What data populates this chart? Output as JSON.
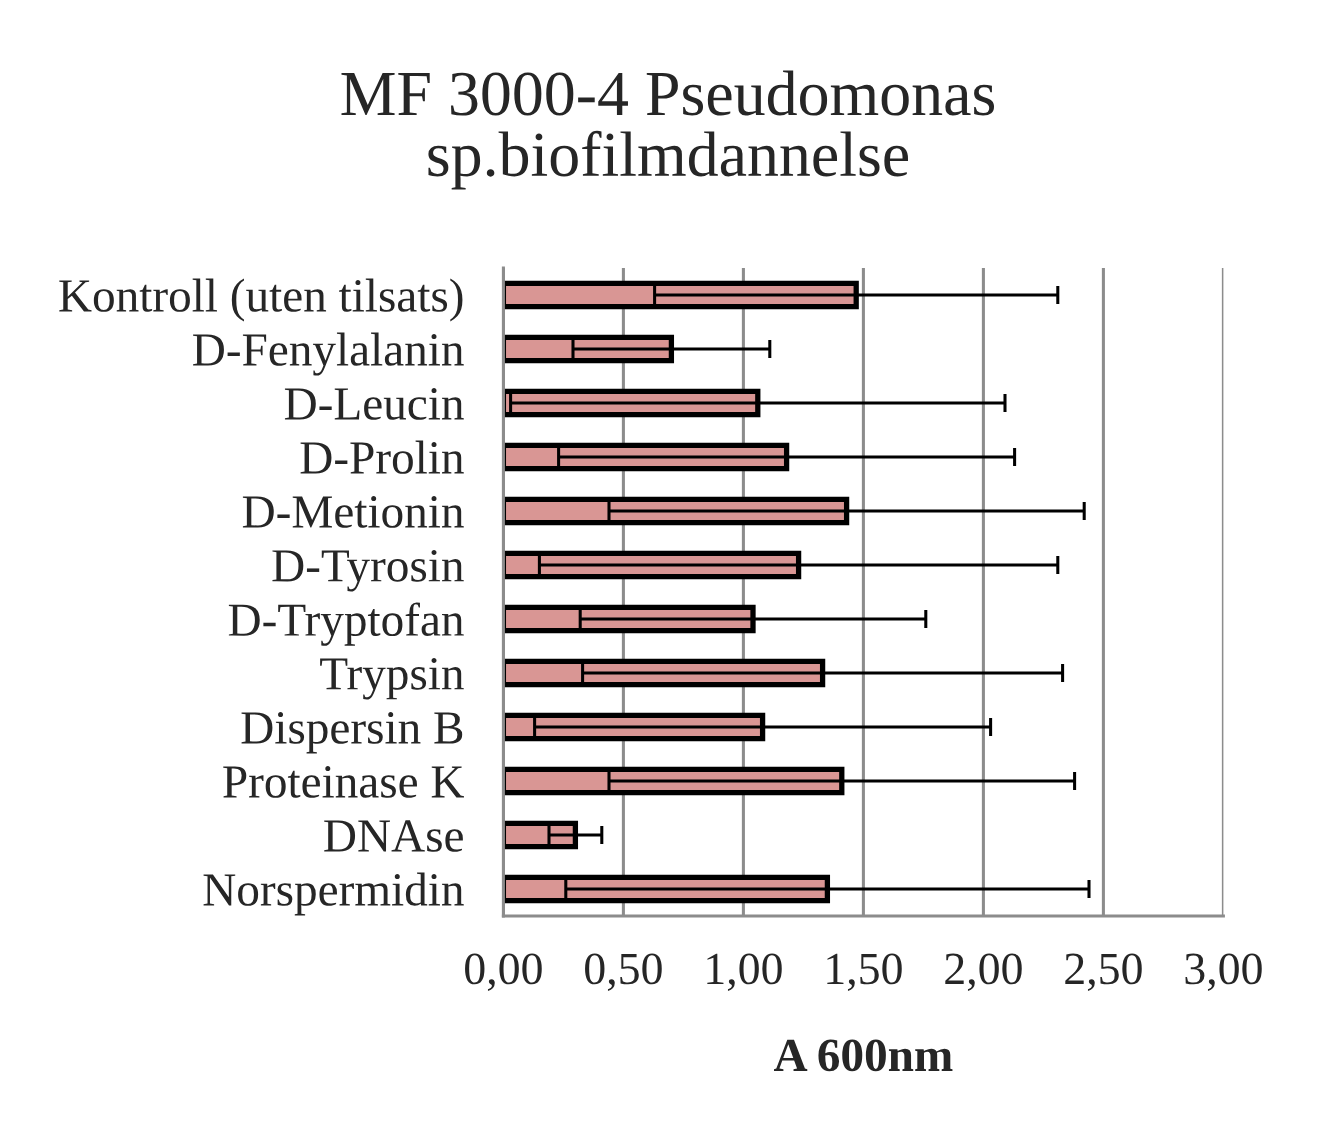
{
  "chart_data": {
    "type": "bar",
    "orientation": "horizontal",
    "title": "MF 3000-4 Pseudomonas\nsp.biofilmdannelse",
    "xlabel": "A 600nm",
    "categories": [
      "Kontroll (uten tilsats)",
      "D-Fenylalanin",
      "D-Leucin",
      "D-Prolin",
      "D-Metionin",
      "D-Tyrosin",
      "D-Tryptofan",
      "Trypsin",
      "Dispersin B",
      "Proteinase K",
      "DNAse",
      "Norspermidin"
    ],
    "values": [
      1.47,
      0.7,
      1.06,
      1.18,
      1.43,
      1.23,
      1.04,
      1.33,
      1.08,
      1.41,
      0.3,
      1.35
    ],
    "errors": [
      0.84,
      0.41,
      1.03,
      0.95,
      0.99,
      1.08,
      0.72,
      1.0,
      0.95,
      0.97,
      0.11,
      1.09
    ],
    "color": "#d99694",
    "xlim": [
      0,
      3.0
    ],
    "xticks": [
      {
        "value": 0,
        "label": "0,00"
      },
      {
        "value": 0.5,
        "label": "0,50"
      },
      {
        "value": 1.0,
        "label": "1,00"
      },
      {
        "value": 1.5,
        "label": "1,50"
      },
      {
        "value": 2.0,
        "label": "2,00"
      },
      {
        "value": 2.5,
        "label": "2,50"
      },
      {
        "value": 3.0,
        "label": "3,00"
      }
    ],
    "grid": "x",
    "legend": false
  }
}
